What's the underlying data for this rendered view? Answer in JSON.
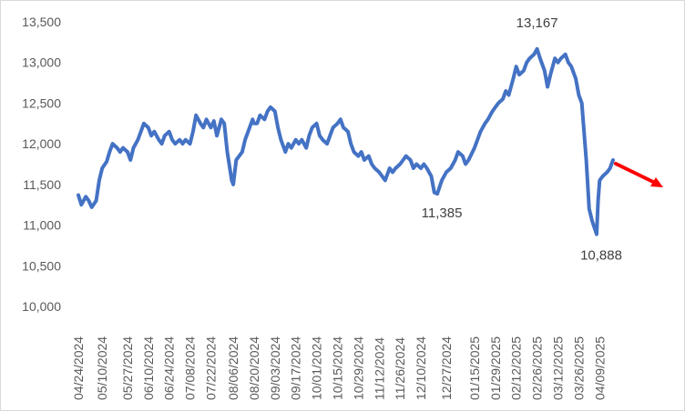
{
  "chart_data": {
    "type": "line",
    "title": "",
    "xlabel": "",
    "ylabel": "",
    "ylim": [
      10000,
      13500
    ],
    "grid": false,
    "legend": "none",
    "y_ticks": [
      "10,000",
      "10,500",
      "11,000",
      "11,500",
      "12,000",
      "12,500",
      "13,000",
      "13,500"
    ],
    "y_tick_values": [
      10000,
      10500,
      11000,
      11500,
      12000,
      12500,
      13000,
      13500
    ],
    "x_ticks": [
      "04/24/2024",
      "05/10/2024",
      "05/27/2024",
      "06/10/2024",
      "06/24/2024",
      "07/08/2024",
      "07/22/2024",
      "08/06/2024",
      "08/20/2024",
      "09/03/2024",
      "09/17/2024",
      "10/01/2024",
      "10/15/2024",
      "10/29/2024",
      "11/12/2024",
      "11/26/2024",
      "12/10/2024",
      "12/27/2024",
      "01/15/2025",
      "01/29/2025",
      "02/12/2025",
      "02/26/2025",
      "03/12/2025",
      "03/26/2025",
      "04/09/2025"
    ],
    "series": [
      {
        "color": "#4472C4",
        "points": [
          [
            "04/24/2024",
            11370
          ],
          [
            "04/26/2024",
            11250
          ],
          [
            "04/29/2024",
            11350
          ],
          [
            "05/01/2024",
            11300
          ],
          [
            "05/03/2024",
            11220
          ],
          [
            "05/06/2024",
            11300
          ],
          [
            "05/08/2024",
            11550
          ],
          [
            "05/10/2024",
            11700
          ],
          [
            "05/13/2024",
            11780
          ],
          [
            "05/15/2024",
            11900
          ],
          [
            "05/17/2024",
            12000
          ],
          [
            "05/20/2024",
            11950
          ],
          [
            "05/22/2024",
            11900
          ],
          [
            "05/24/2024",
            11950
          ],
          [
            "05/27/2024",
            11900
          ],
          [
            "05/29/2024",
            11800
          ],
          [
            "05/31/2024",
            11950
          ],
          [
            "06/03/2024",
            12050
          ],
          [
            "06/05/2024",
            12150
          ],
          [
            "06/07/2024",
            12250
          ],
          [
            "06/10/2024",
            12200
          ],
          [
            "06/12/2024",
            12100
          ],
          [
            "06/14/2024",
            12150
          ],
          [
            "06/17/2024",
            12050
          ],
          [
            "06/19/2024",
            12000
          ],
          [
            "06/21/2024",
            12100
          ],
          [
            "06/24/2024",
            12150
          ],
          [
            "06/26/2024",
            12050
          ],
          [
            "06/28/2024",
            12000
          ],
          [
            "07/01/2024",
            12050
          ],
          [
            "07/03/2024",
            12000
          ],
          [
            "07/05/2024",
            12050
          ],
          [
            "07/08/2024",
            12000
          ],
          [
            "07/10/2024",
            12150
          ],
          [
            "07/12/2024",
            12350
          ],
          [
            "07/15/2024",
            12250
          ],
          [
            "07/17/2024",
            12200
          ],
          [
            "07/19/2024",
            12300
          ],
          [
            "07/22/2024",
            12200
          ],
          [
            "07/24/2024",
            12280
          ],
          [
            "07/26/2024",
            12100
          ],
          [
            "07/29/2024",
            12300
          ],
          [
            "07/31/2024",
            12250
          ],
          [
            "08/02/2024",
            11900
          ],
          [
            "08/05/2024",
            11550
          ],
          [
            "08/06/2024",
            11500
          ],
          [
            "08/08/2024",
            11800
          ],
          [
            "08/10/2024",
            11850
          ],
          [
            "08/12/2024",
            11900
          ],
          [
            "08/14/2024",
            12050
          ],
          [
            "08/16/2024",
            12150
          ],
          [
            "08/19/2024",
            12300
          ],
          [
            "08/20/2024",
            12250
          ],
          [
            "08/22/2024",
            12250
          ],
          [
            "08/24/2024",
            12350
          ],
          [
            "08/27/2024",
            12300
          ],
          [
            "08/29/2024",
            12400
          ],
          [
            "08/31/2024",
            12450
          ],
          [
            "09/03/2024",
            12400
          ],
          [
            "09/05/2024",
            12200
          ],
          [
            "09/07/2024",
            12050
          ],
          [
            "09/10/2024",
            11900
          ],
          [
            "09/12/2024",
            12000
          ],
          [
            "09/14/2024",
            11950
          ],
          [
            "09/17/2024",
            12050
          ],
          [
            "09/19/2024",
            12000
          ],
          [
            "09/21/2024",
            12050
          ],
          [
            "09/24/2024",
            11950
          ],
          [
            "09/26/2024",
            12100
          ],
          [
            "09/28/2024",
            12200
          ],
          [
            "10/01/2024",
            12250
          ],
          [
            "10/03/2024",
            12100
          ],
          [
            "10/05/2024",
            12050
          ],
          [
            "10/08/2024",
            12000
          ],
          [
            "10/10/2024",
            12100
          ],
          [
            "10/12/2024",
            12200
          ],
          [
            "10/15/2024",
            12250
          ],
          [
            "10/17/2024",
            12300
          ],
          [
            "10/19/2024",
            12200
          ],
          [
            "10/22/2024",
            12150
          ],
          [
            "10/24/2024",
            12000
          ],
          [
            "10/26/2024",
            11900
          ],
          [
            "10/29/2024",
            11850
          ],
          [
            "10/31/2024",
            11900
          ],
          [
            "11/02/2024",
            11800
          ],
          [
            "11/05/2024",
            11850
          ],
          [
            "11/07/2024",
            11750
          ],
          [
            "11/09/2024",
            11700
          ],
          [
            "11/12/2024",
            11650
          ],
          [
            "11/14/2024",
            11600
          ],
          [
            "11/16/2024",
            11550
          ],
          [
            "11/19/2024",
            11700
          ],
          [
            "11/21/2024",
            11650
          ],
          [
            "11/23/2024",
            11700
          ],
          [
            "11/26/2024",
            11750
          ],
          [
            "11/28/2024",
            11800
          ],
          [
            "11/30/2024",
            11850
          ],
          [
            "12/03/2024",
            11800
          ],
          [
            "12/05/2024",
            11700
          ],
          [
            "12/07/2024",
            11750
          ],
          [
            "12/10/2024",
            11700
          ],
          [
            "12/12/2024",
            11750
          ],
          [
            "12/14/2024",
            11700
          ],
          [
            "12/17/2024",
            11600
          ],
          [
            "12/19/2024",
            11400
          ],
          [
            "12/21/2024",
            11385
          ],
          [
            "12/24/2024",
            11550
          ],
          [
            "12/27/2024",
            11650
          ],
          [
            "12/30/2024",
            11700
          ],
          [
            "01/02/2025",
            11800
          ],
          [
            "01/04/2025",
            11900
          ],
          [
            "01/07/2025",
            11850
          ],
          [
            "01/09/2025",
            11750
          ],
          [
            "01/11/2025",
            11800
          ],
          [
            "01/15/2025",
            11950
          ],
          [
            "01/17/2025",
            12050
          ],
          [
            "01/19/2025",
            12150
          ],
          [
            "01/22/2025",
            12250
          ],
          [
            "01/24/2025",
            12300
          ],
          [
            "01/27/2025",
            12400
          ],
          [
            "01/29/2025",
            12450
          ],
          [
            "01/31/2025",
            12500
          ],
          [
            "02/03/2025",
            12550
          ],
          [
            "02/05/2025",
            12650
          ],
          [
            "02/07/2025",
            12600
          ],
          [
            "02/10/2025",
            12800
          ],
          [
            "02/12/2025",
            12950
          ],
          [
            "02/14/2025",
            12850
          ],
          [
            "02/17/2025",
            12900
          ],
          [
            "02/19/2025",
            13000
          ],
          [
            "02/21/2025",
            13050
          ],
          [
            "02/24/2025",
            13100
          ],
          [
            "02/26/2025",
            13167
          ],
          [
            "02/28/2025",
            13050
          ],
          [
            "03/03/2025",
            12900
          ],
          [
            "03/05/2025",
            12700
          ],
          [
            "03/07/2025",
            12850
          ],
          [
            "03/10/2025",
            13050
          ],
          [
            "03/12/2025",
            13000
          ],
          [
            "03/14/2025",
            13050
          ],
          [
            "03/17/2025",
            13100
          ],
          [
            "03/19/2025",
            13000
          ],
          [
            "03/21/2025",
            12950
          ],
          [
            "03/24/2025",
            12800
          ],
          [
            "03/26/2025",
            12600
          ],
          [
            "03/28/2025",
            12500
          ],
          [
            "03/31/2025",
            11800
          ],
          [
            "04/02/2025",
            11200
          ],
          [
            "04/04/2025",
            11050
          ],
          [
            "04/07/2025",
            10888
          ],
          [
            "04/08/2025",
            11300
          ],
          [
            "04/09/2025",
            11550
          ],
          [
            "04/11/2025",
            11600
          ],
          [
            "04/14/2025",
            11650
          ],
          [
            "04/16/2025",
            11700
          ],
          [
            "04/18/2025",
            11800
          ]
        ]
      }
    ],
    "annotations": [
      {
        "text": "13,167",
        "x": "02/26/2025",
        "y": 13167
      },
      {
        "text": "11,385",
        "x": "12/21/2024",
        "y": 11385
      },
      {
        "text": "10,888",
        "x": "04/07/2025",
        "y": 10888
      }
    ],
    "arrow_color": "#FF0000"
  }
}
